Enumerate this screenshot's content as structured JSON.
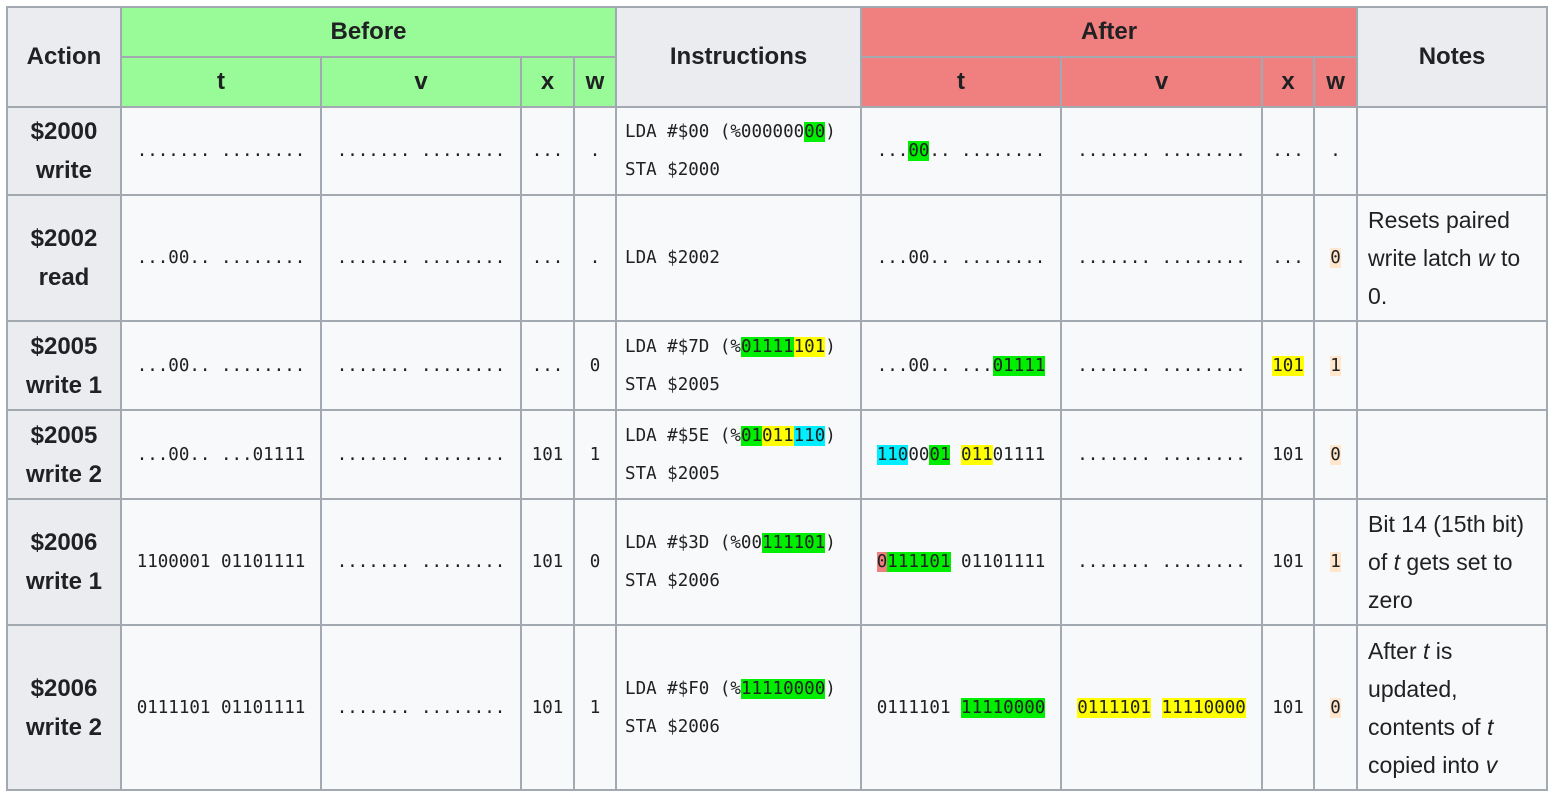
{
  "headers": {
    "action": "Action",
    "before": "Before",
    "instructions": "Instructions",
    "after": "After",
    "notes": "Notes",
    "t": "t",
    "v": "v",
    "x": "x",
    "w": "w"
  },
  "rows": [
    {
      "action": [
        "$2000",
        "write"
      ],
      "before": {
        "t": [
          {
            "text": "....... ........"
          }
        ],
        "v": [
          {
            "text": "....... ........"
          }
        ],
        "x": [
          {
            "text": "..."
          }
        ],
        "w": [
          {
            "text": "."
          }
        ]
      },
      "instructions": [
        [
          {
            "text": "LDA #$00 (%000000"
          },
          {
            "text": "00",
            "hl": "green"
          },
          {
            "text": ")"
          }
        ],
        [
          {
            "text": "STA $2000"
          }
        ]
      ],
      "after": {
        "t": [
          {
            "text": "..."
          },
          {
            "text": "00",
            "hl": "green"
          },
          {
            "text": ".. ........"
          }
        ],
        "v": [
          {
            "text": "....... ........"
          }
        ],
        "x": [
          {
            "text": "..."
          }
        ],
        "w": [
          {
            "text": "."
          }
        ]
      },
      "notes": []
    },
    {
      "action": [
        "$2002",
        "read"
      ],
      "before": {
        "t": [
          {
            "text": "...00.. ........"
          }
        ],
        "v": [
          {
            "text": "....... ........"
          }
        ],
        "x": [
          {
            "text": "..."
          }
        ],
        "w": [
          {
            "text": "."
          }
        ]
      },
      "instructions": [
        [
          {
            "text": "LDA $2002"
          }
        ]
      ],
      "after": {
        "t": [
          {
            "text": "...00.. ........"
          }
        ],
        "v": [
          {
            "text": "....... ........"
          }
        ],
        "x": [
          {
            "text": "..."
          }
        ],
        "w": [
          {
            "text": "0",
            "hl": "peach"
          }
        ]
      },
      "notes": [
        {
          "text": "Resets paired write latch "
        },
        {
          "text": "w",
          "i": true
        },
        {
          "text": " to 0."
        }
      ]
    },
    {
      "action": [
        "$2005",
        "write 1"
      ],
      "before": {
        "t": [
          {
            "text": "...00.. ........"
          }
        ],
        "v": [
          {
            "text": "....... ........"
          }
        ],
        "x": [
          {
            "text": "..."
          }
        ],
        "w": [
          {
            "text": "0"
          }
        ]
      },
      "instructions": [
        [
          {
            "text": "LDA #$7D (%"
          },
          {
            "text": "01111",
            "hl": "green"
          },
          {
            "text": "101",
            "hl": "yellow"
          },
          {
            "text": ")"
          }
        ],
        [
          {
            "text": "STA $2005"
          }
        ]
      ],
      "after": {
        "t": [
          {
            "text": "...00.. ..."
          },
          {
            "text": "01111",
            "hl": "green"
          }
        ],
        "v": [
          {
            "text": "....... ........"
          }
        ],
        "x": [
          {
            "text": "101",
            "hl": "yellow"
          }
        ],
        "w": [
          {
            "text": "1",
            "hl": "peach"
          }
        ]
      },
      "notes": []
    },
    {
      "action": [
        "$2005",
        "write 2"
      ],
      "before": {
        "t": [
          {
            "text": "...00.. ...01111"
          }
        ],
        "v": [
          {
            "text": "....... ........"
          }
        ],
        "x": [
          {
            "text": "101"
          }
        ],
        "w": [
          {
            "text": "1"
          }
        ]
      },
      "instructions": [
        [
          {
            "text": "LDA #$5E (%"
          },
          {
            "text": "01",
            "hl": "green"
          },
          {
            "text": "011",
            "hl": "yellow"
          },
          {
            "text": "110",
            "hl": "cyan"
          },
          {
            "text": ")"
          }
        ],
        [
          {
            "text": "STA $2005"
          }
        ]
      ],
      "after": {
        "t": [
          {
            "text": "110",
            "hl": "cyan"
          },
          {
            "text": "00"
          },
          {
            "text": "01",
            "hl": "green"
          },
          {
            "text": " "
          },
          {
            "text": "011",
            "hl": "yellow"
          },
          {
            "text": "01111"
          }
        ],
        "v": [
          {
            "text": "....... ........"
          }
        ],
        "x": [
          {
            "text": "101"
          }
        ],
        "w": [
          {
            "text": "0",
            "hl": "peach"
          }
        ]
      },
      "notes": []
    },
    {
      "action": [
        "$2006",
        "write 1"
      ],
      "before": {
        "t": [
          {
            "text": "1100001 01101111"
          }
        ],
        "v": [
          {
            "text": "....... ........"
          }
        ],
        "x": [
          {
            "text": "101"
          }
        ],
        "w": [
          {
            "text": "0"
          }
        ]
      },
      "instructions": [
        [
          {
            "text": "LDA #$3D (%00"
          },
          {
            "text": "111101",
            "hl": "green"
          },
          {
            "text": ")"
          }
        ],
        [
          {
            "text": "STA $2006"
          }
        ]
      ],
      "after": {
        "t": [
          {
            "text": "0",
            "hl": "red"
          },
          {
            "text": "111101",
            "hl": "green"
          },
          {
            "text": " 01101111"
          }
        ],
        "v": [
          {
            "text": "....... ........"
          }
        ],
        "x": [
          {
            "text": "101"
          }
        ],
        "w": [
          {
            "text": "1",
            "hl": "peach"
          }
        ]
      },
      "notes": [
        {
          "text": "Bit 14 (15th bit) of "
        },
        {
          "text": "t",
          "i": true
        },
        {
          "text": " gets set to zero"
        }
      ]
    },
    {
      "action": [
        "$2006",
        "write 2"
      ],
      "before": {
        "t": [
          {
            "text": "0111101 01101111"
          }
        ],
        "v": [
          {
            "text": "....... ........"
          }
        ],
        "x": [
          {
            "text": "101"
          }
        ],
        "w": [
          {
            "text": "1"
          }
        ]
      },
      "instructions": [
        [
          {
            "text": "LDA #$F0 (%"
          },
          {
            "text": "11110000",
            "hl": "green"
          },
          {
            "text": ")"
          }
        ],
        [
          {
            "text": "STA $2006"
          }
        ]
      ],
      "after": {
        "t": [
          {
            "text": "0111101 "
          },
          {
            "text": "11110000",
            "hl": "green"
          }
        ],
        "v": [
          {
            "text": "0111101",
            "hl": "yellow"
          },
          {
            "text": " "
          },
          {
            "text": "11110000",
            "hl": "yellow"
          }
        ],
        "x": [
          {
            "text": "101"
          }
        ],
        "w": [
          {
            "text": "0",
            "hl": "peach"
          }
        ]
      },
      "notes": [
        {
          "text": "After "
        },
        {
          "text": "t",
          "i": true
        },
        {
          "text": " is updated, contents of "
        },
        {
          "text": "t",
          "i": true
        },
        {
          "text": " copied into "
        },
        {
          "text": "v",
          "i": true
        }
      ]
    }
  ],
  "colors": {
    "before_header": "#98fb98",
    "after_header": "#f08080",
    "highlight_green": "#00ee00",
    "highlight_yellow": "#ffff00",
    "highlight_cyan": "#00eeff",
    "highlight_red": "#f08080",
    "highlight_peach": "#ffe6cc"
  }
}
